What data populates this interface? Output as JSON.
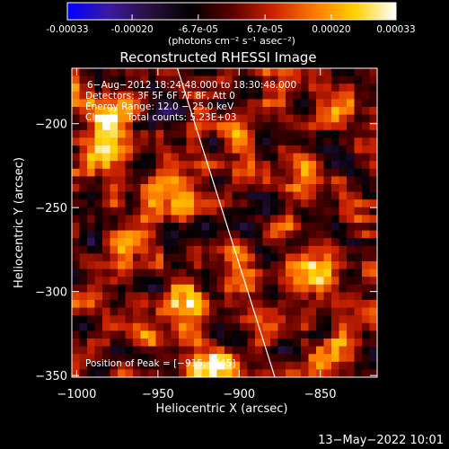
{
  "colorbar": {
    "tick_labels": [
      "-0.00033",
      "-0.00020",
      "-6.7e-05",
      "6.7e-05",
      "0.00020",
      "0.00033"
    ],
    "tick_values": [
      -0.00033,
      -0.0002,
      -6.7e-05,
      6.7e-05,
      0.0002,
      0.00033
    ],
    "range": [
      -0.00033,
      0.00033
    ],
    "units_label": "(photons cm⁻² s⁻¹ asec⁻²)",
    "stops": [
      "#0000ff",
      "#3a1aa0",
      "#2a1040",
      "#000000",
      "#5a0000",
      "#cc2200",
      "#ff7700",
      "#ffd000",
      "#ffffff"
    ]
  },
  "chart_data": {
    "type": "heatmap",
    "title": "Reconstructed RHESSI Image",
    "xlabel": "Heliocentric X (arcsec)",
    "ylabel": "Heliocentric Y (arcsec)",
    "xlim": [
      -1003,
      -815
    ],
    "ylim": [
      -351,
      -167
    ],
    "x_ticks": [
      -1000,
      -950,
      -900,
      -850
    ],
    "y_ticks": [
      -350,
      -300,
      -250,
      -200
    ],
    "x_tick_labels": [
      "−1000",
      "−950",
      "−900",
      "−850"
    ],
    "y_tick_labels": [
      "−350",
      "−300",
      "−250",
      "−200"
    ],
    "limb_line": [
      [
        -938,
        -167
      ],
      [
        -878,
        -351
      ]
    ],
    "peak": [
      -915,
      -345
    ],
    "annotations": [
      "6−Aug−2012 18:24:48.000 to 18:30:48.000",
      "Detectors: 3F 5F 6F 7F 8F, Att 0",
      "Energy Range: 12.0 − 25.0 keV",
      "Clean     Total counts: 5.23E+03"
    ],
    "peak_label": "Position of Peak = [−915,−345]",
    "grid": false
  },
  "footer": {
    "timestamp": "13−May−2022 10:01"
  }
}
